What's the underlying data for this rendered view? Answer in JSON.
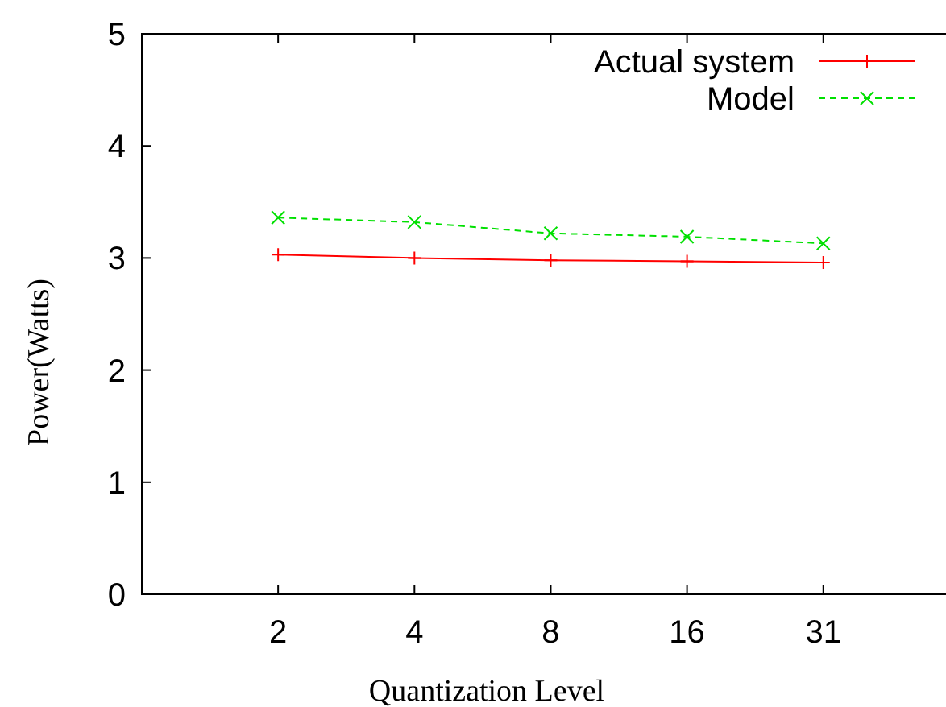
{
  "chart_data": {
    "type": "line",
    "xlabel": "Quantization Level",
    "ylabel": "Power(Watts)",
    "categories": [
      "2",
      "4",
      "8",
      "16",
      "31"
    ],
    "ylim": [
      0,
      5
    ],
    "yticks": [
      0,
      1,
      2,
      3,
      4,
      5
    ],
    "grid": false,
    "legend": "top right",
    "series": [
      {
        "name": "Actual system",
        "color": "#ff0000",
        "values": [
          3.03,
          3.0,
          2.98,
          2.97,
          2.96
        ],
        "marker": "cross",
        "line_style": "solid"
      },
      {
        "name": "Model",
        "color": "#00e000",
        "values": [
          3.36,
          3.32,
          3.22,
          3.19,
          3.13
        ],
        "marker": "x",
        "line_style": "dashed"
      }
    ]
  }
}
